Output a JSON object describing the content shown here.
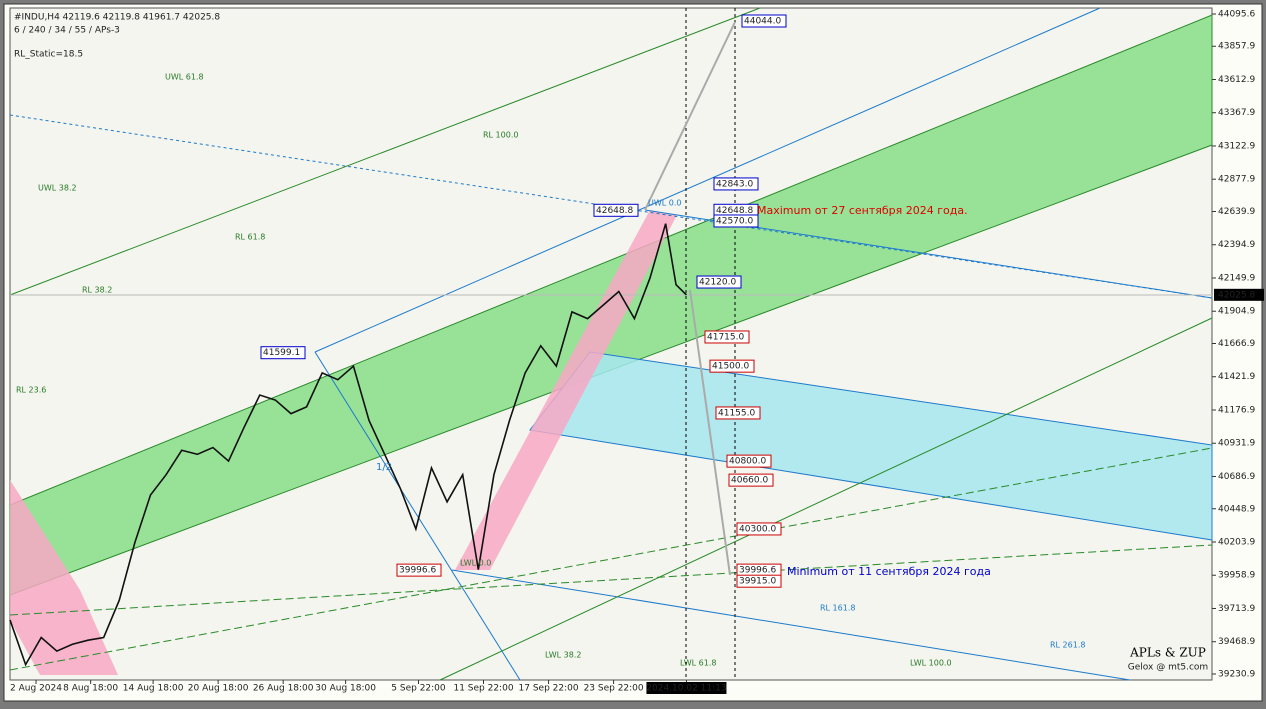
{
  "chart_data": {
    "type": "line",
    "header": "#INDU,H4  42119.6 42119.8 41961.7 42025.8",
    "subheader": "6 / 240 / 34 / 55 / APs-3",
    "indicator": "RL_Static=18.5",
    "x": [
      0,
      6,
      12,
      18,
      24,
      30,
      36,
      42,
      48,
      54,
      60,
      66,
      72,
      78,
      84,
      90,
      96,
      102,
      108,
      114,
      120,
      126,
      132,
      138,
      144,
      150,
      156,
      162,
      168,
      174,
      180,
      186,
      192,
      198,
      204,
      210,
      216,
      222,
      228,
      234,
      240,
      246,
      252,
      256,
      260
    ],
    "series": [
      {
        "name": "Close",
        "color": "#111111",
        "values": [
          39630,
          39300,
          39500,
          39400,
          39450,
          39480,
          39500,
          39775,
          40200,
          40550,
          40700,
          40880,
          40850,
          40900,
          40800,
          41050,
          41287,
          41250,
          41150,
          41200,
          41450,
          41400,
          41500,
          41100,
          40850,
          40600,
          40300,
          40750,
          40500,
          40700,
          40000,
          40700,
          41100,
          41450,
          41650,
          41500,
          41900,
          41850,
          41950,
          42050,
          41850,
          42150,
          42550,
          42100,
          42025
        ]
      }
    ],
    "xlim": [
      0,
      462
    ],
    "xticks": [
      {
        "value": 10,
        "label": "2 Aug 2024"
      },
      {
        "value": 31,
        "label": "8 Aug 18:00"
      },
      {
        "value": 55,
        "label": "14 Aug 18:00"
      },
      {
        "value": 80,
        "label": "20 Aug 18:00"
      },
      {
        "value": 105,
        "label": "26 Aug 18:00"
      },
      {
        "value": 129,
        "label": "30 Aug 18:00"
      },
      {
        "value": 157,
        "label": "5 Sep 22:00"
      },
      {
        "value": 182,
        "label": "11 Sep 22:00"
      },
      {
        "value": 207,
        "label": "17 Sep 22:00"
      },
      {
        "value": 232,
        "label": "23 Sep 22:00"
      },
      {
        "value": 260,
        "label": "2024.10.02 11:13"
      }
    ],
    "ylim": [
      39186.7,
      44139.8
    ],
    "yticks": [
      44095.6,
      43857.9,
      43612.9,
      43367.9,
      43122.9,
      42877.9,
      42639.9,
      42394.9,
      42149.9,
      41904.9,
      41666.9,
      41421.9,
      41176.9,
      40931.9,
      40686.9,
      40448.9,
      40203.9,
      39958.9,
      39713.9,
      39468.9,
      39230.9
    ],
    "last_price": 42025.8,
    "levels": {
      "values": [
        44044,
        42843,
        42648.8,
        42570,
        42120,
        41715,
        41500,
        41155,
        40800,
        40660,
        40300,
        39996.6,
        39915,
        42648.8,
        41599.1,
        39996.6
      ],
      "value_labels": [
        "44044.0",
        "42843.0",
        "42648.8",
        "42570.0",
        "42120.0",
        "41715.0",
        "41500.0",
        "41155.0",
        "40800.0",
        "40660.0",
        "40300.0",
        "39996.6",
        "39915.0",
        "42648.8",
        "41599.1",
        "39996.6"
      ],
      "colors": [
        "#0000cc",
        "#0000cc",
        "#0000cc",
        "#0000cc",
        "#0000cc",
        "#cc0000",
        "#cc0000",
        "#cc0000",
        "#cc0000",
        "#cc0000",
        "#cc0000",
        "#cc0000",
        "#cc0000",
        "#0000cc",
        "#0000cc",
        "#cc0000"
      ]
    },
    "annotations": [
      "Maximum от 27 сентября 2024 года.",
      "Minimum от 11 сентября 2024 года",
      "UWL 61.8",
      "UWL 38.2",
      "RL 100.0",
      "RL 61.8",
      "RL 38.2",
      "RL 23.6",
      "UWL 0.0",
      "LWL 0.0",
      "LWL 38.2",
      "LWL 61.8",
      "LWL 100.0",
      "RL 161.8",
      "RL 261.8",
      "1/2"
    ],
    "signature": [
      "APLs & ZUP",
      "Gelox @ mt5.com"
    ]
  }
}
